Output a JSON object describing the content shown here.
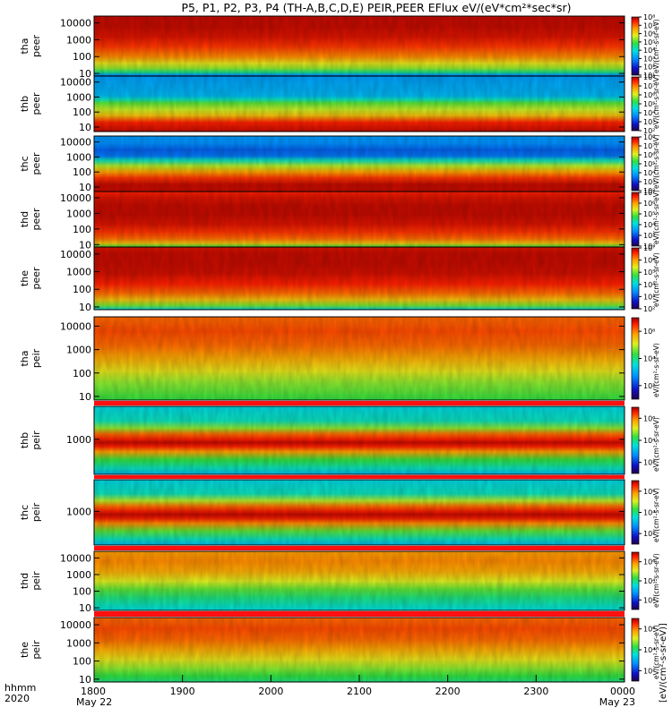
{
  "chart_data": {
    "type": "heatmap",
    "title": "P5, P1, P2, P3, P4 (TH-A,B,C,D,E) PEIR,PEER EFlux eV/(eV*cm²*sec*sr)",
    "time_axis": {
      "row_label_1": "hhmm",
      "row_label_2": "2020",
      "ticks": [
        "1800",
        "1900",
        "2000",
        "2100",
        "2200",
        "2300",
        "0000"
      ],
      "date_labels": [
        "May 22",
        "May 23"
      ]
    },
    "colorbar_label": "[eV/(cm²-s-sr-eV)]",
    "colorbar_label_short": "eV/(cm²-s-sr-eV)",
    "panels": [
      {
        "id": "tha-peer",
        "label": "tha",
        "sub": "peer",
        "y_ticks": [
          "10",
          "100",
          "1000",
          "10000"
        ],
        "y_range": [
          7,
          25000
        ],
        "cb_ticks": [
          "10¹",
          "10²",
          "10³",
          "10⁴",
          "10⁵",
          "10⁶",
          "10⁷",
          "10⁸"
        ],
        "cb_range": [
          1,
          8
        ],
        "spectrum": [
          [
            5,
            0.05
          ],
          [
            8,
            0.3
          ],
          [
            12,
            0.5
          ],
          [
            20,
            0.62
          ],
          [
            40,
            0.7
          ],
          [
            100,
            0.82
          ],
          [
            400,
            0.9
          ],
          [
            1500,
            0.95
          ],
          [
            6000,
            0.97
          ],
          [
            25000,
            0.97
          ]
        ]
      },
      {
        "id": "thb-peer",
        "label": "thb",
        "sub": "peer",
        "y_ticks": [
          "10",
          "100",
          "1000",
          "10000"
        ],
        "y_range": [
          5,
          25000
        ],
        "cb_ticks": [
          "10²",
          "10³",
          "10⁴",
          "10⁵",
          "10⁶",
          "10⁷",
          "10⁸"
        ],
        "cb_range": [
          2,
          8
        ],
        "spectrum": [
          [
            5,
            0.97
          ],
          [
            20,
            0.92
          ],
          [
            60,
            0.75
          ],
          [
            150,
            0.66
          ],
          [
            400,
            0.58
          ],
          [
            700,
            0.45
          ],
          [
            1200,
            0.35
          ],
          [
            3000,
            0.33
          ],
          [
            8000,
            0.32
          ],
          [
            25000,
            0.3
          ]
        ]
      },
      {
        "id": "thc-peer",
        "label": "thc",
        "sub": "peer",
        "y_ticks": [
          "10",
          "100",
          "1000",
          "10000"
        ],
        "y_range": [
          5,
          25000
        ],
        "cb_ticks": [
          "10²",
          "10³",
          "10⁴",
          "10⁵",
          "10⁶",
          "10⁷",
          "10⁸"
        ],
        "cb_range": [
          2,
          8
        ],
        "spectrum": [
          [
            5,
            0.97
          ],
          [
            15,
            0.97
          ],
          [
            40,
            0.9
          ],
          [
            100,
            0.8
          ],
          [
            250,
            0.65
          ],
          [
            600,
            0.45
          ],
          [
            1200,
            0.25
          ],
          [
            3000,
            0.22
          ],
          [
            8000,
            0.28
          ],
          [
            25000,
            0.3
          ]
        ]
      },
      {
        "id": "thd-peer",
        "label": "thd",
        "sub": "peer",
        "y_ticks": [
          "10",
          "100",
          "1000",
          "10000"
        ],
        "y_range": [
          7,
          25000
        ],
        "cb_ticks": [
          "10²",
          "10³",
          "10⁴",
          "10⁵",
          "10⁶",
          "10⁷"
        ],
        "cb_range": [
          2,
          7
        ],
        "spectrum": [
          [
            7,
            0.55
          ],
          [
            12,
            0.75
          ],
          [
            25,
            0.85
          ],
          [
            60,
            0.9
          ],
          [
            200,
            0.95
          ],
          [
            800,
            0.97
          ],
          [
            3000,
            0.97
          ],
          [
            10000,
            0.95
          ],
          [
            25000,
            0.92
          ]
        ]
      },
      {
        "id": "the-peer",
        "label": "the",
        "sub": "peer",
        "y_ticks": [
          "10",
          "100",
          "1000",
          "10000"
        ],
        "y_range": [
          7,
          25000
        ],
        "cb_ticks": [
          "10²",
          "10³",
          "10⁴",
          "10⁵",
          "10⁶",
          "10⁷"
        ],
        "cb_range": [
          2,
          7
        ],
        "spectrum": [
          [
            7,
            0.4
          ],
          [
            12,
            0.6
          ],
          [
            25,
            0.75
          ],
          [
            60,
            0.85
          ],
          [
            200,
            0.92
          ],
          [
            800,
            0.96
          ],
          [
            3000,
            0.97
          ],
          [
            10000,
            0.97
          ],
          [
            25000,
            0.95
          ]
        ]
      },
      {
        "id": "tha-peir",
        "label": "tha",
        "sub": "peir",
        "y_ticks": [
          "10",
          "100",
          "1000",
          "10000"
        ],
        "y_range": [
          7,
          25000
        ],
        "cb_ticks": [
          "10²",
          "10⁴",
          "10⁶"
        ],
        "cb_range": [
          1,
          7
        ],
        "spectrum": [
          [
            7,
            0.55
          ],
          [
            15,
            0.58
          ],
          [
            40,
            0.62
          ],
          [
            120,
            0.7
          ],
          [
            400,
            0.78
          ],
          [
            1500,
            0.85
          ],
          [
            6000,
            0.88
          ],
          [
            25000,
            0.85
          ]
        ]
      },
      {
        "id": "thb-peir",
        "label": "thb",
        "sub": "peir",
        "y_ticks": [
          "1000"
        ],
        "y_range": [
          20,
          40000
        ],
        "cb_ticks": [
          "10²",
          "10⁴",
          "10⁶"
        ],
        "cb_range": [
          1,
          7
        ],
        "spectrum": [
          [
            20,
            0.35
          ],
          [
            40,
            0.45
          ],
          [
            100,
            0.55
          ],
          [
            250,
            0.8
          ],
          [
            450,
            0.92
          ],
          [
            700,
            0.97
          ],
          [
            1000,
            0.92
          ],
          [
            1800,
            0.85
          ],
          [
            3500,
            0.62
          ],
          [
            8000,
            0.45
          ],
          [
            40000,
            0.4
          ]
        ]
      },
      {
        "id": "thc-peir",
        "label": "thc",
        "sub": "peir",
        "y_ticks": [
          "1000"
        ],
        "y_range": [
          20,
          40000
        ],
        "cb_ticks": [
          "10²",
          "10⁴",
          "10⁶"
        ],
        "cb_range": [
          1,
          7
        ],
        "spectrum": [
          [
            20,
            0.35
          ],
          [
            40,
            0.45
          ],
          [
            100,
            0.58
          ],
          [
            250,
            0.82
          ],
          [
            450,
            0.93
          ],
          [
            700,
            0.97
          ],
          [
            1000,
            0.93
          ],
          [
            1800,
            0.85
          ],
          [
            3500,
            0.65
          ],
          [
            8000,
            0.45
          ],
          [
            40000,
            0.4
          ]
        ]
      },
      {
        "id": "thd-peir",
        "label": "thd",
        "sub": "peir",
        "y_ticks": [
          "10",
          "100",
          "1000",
          "10000"
        ],
        "y_range": [
          7,
          25000
        ],
        "cb_ticks": [
          "10²",
          "10⁴",
          "10⁶"
        ],
        "cb_range": [
          1,
          7
        ],
        "spectrum": [
          [
            7,
            0.42
          ],
          [
            15,
            0.45
          ],
          [
            40,
            0.5
          ],
          [
            120,
            0.58
          ],
          [
            400,
            0.68
          ],
          [
            1500,
            0.78
          ],
          [
            6000,
            0.82
          ],
          [
            25000,
            0.8
          ]
        ]
      },
      {
        "id": "the-peir",
        "label": "the",
        "sub": "peir",
        "y_ticks": [
          "10",
          "100",
          "1000",
          "10000"
        ],
        "y_range": [
          7,
          25000
        ],
        "cb_ticks": [
          "10²",
          "10⁴",
          "10⁶"
        ],
        "cb_range": [
          1,
          7
        ],
        "spectrum": [
          [
            7,
            0.5
          ],
          [
            15,
            0.55
          ],
          [
            40,
            0.62
          ],
          [
            120,
            0.7
          ],
          [
            400,
            0.78
          ],
          [
            1500,
            0.85
          ],
          [
            6000,
            0.88
          ],
          [
            25000,
            0.85
          ]
        ]
      }
    ]
  }
}
